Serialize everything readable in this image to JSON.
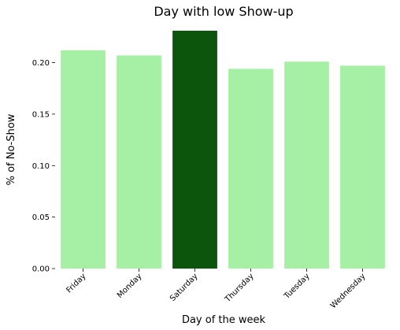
{
  "chart_data": {
    "type": "bar",
    "title": "Day with low Show-up",
    "xlabel": "Day of the week",
    "ylabel": "% of No-Show",
    "categories": [
      "Friday",
      "Monday",
      "Saturday",
      "Thursday",
      "Tuesday",
      "Wednesday"
    ],
    "values": [
      0.212,
      0.207,
      0.231,
      0.194,
      0.201,
      0.197
    ],
    "yticks": [
      "0.00",
      "0.05",
      "0.10",
      "0.15",
      "0.20"
    ],
    "ylim": [
      0,
      0.231
    ],
    "grid": false,
    "colors": {
      "default": "#a6f0a6",
      "highlight": "#0c550c",
      "highlight_category": "Saturday"
    }
  }
}
